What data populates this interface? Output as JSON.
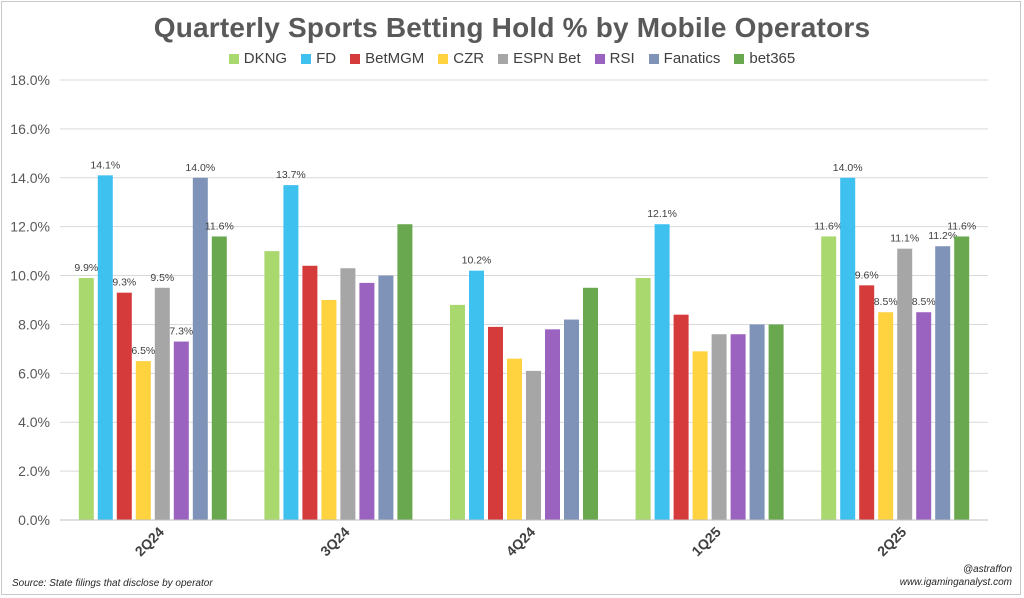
{
  "chart_data": {
    "type": "bar",
    "title": "Quarterly Sports Betting Hold % by Mobile Operators",
    "categories": [
      "2Q24",
      "3Q24",
      "4Q24",
      "1Q25",
      "2Q25"
    ],
    "ylim": [
      0,
      18
    ],
    "yticks": [
      "0.0%",
      "2.0%",
      "4.0%",
      "6.0%",
      "8.0%",
      "10.0%",
      "12.0%",
      "14.0%",
      "16.0%",
      "18.0%"
    ],
    "grid": true,
    "legend_position": "top",
    "series": [
      {
        "name": "DKNG",
        "color": "#a9d86e",
        "values": [
          9.9,
          11.0,
          8.8,
          9.9,
          11.6
        ],
        "labels": [
          "9.9%",
          null,
          null,
          null,
          "11.6%"
        ]
      },
      {
        "name": "FD",
        "color": "#3fc1f0",
        "values": [
          14.1,
          13.7,
          10.2,
          12.1,
          14.0
        ],
        "labels": [
          "14.1%",
          "13.7%",
          "10.2%",
          "12.1%",
          "14.0%"
        ]
      },
      {
        "name": "BetMGM",
        "color": "#d63b3b",
        "values": [
          9.3,
          10.4,
          7.9,
          8.4,
          9.6
        ],
        "labels": [
          "9.3%",
          null,
          null,
          null,
          "9.6%"
        ]
      },
      {
        "name": "CZR",
        "color": "#ffd23f",
        "values": [
          6.5,
          9.0,
          6.6,
          6.9,
          8.5
        ],
        "labels": [
          "6.5%",
          null,
          null,
          null,
          "8.5%"
        ]
      },
      {
        "name": "ESPN Bet",
        "color": "#a6a6a6",
        "values": [
          9.5,
          10.3,
          6.1,
          7.6,
          11.1
        ],
        "labels": [
          "9.5%",
          null,
          null,
          null,
          "11.1%"
        ]
      },
      {
        "name": "RSI",
        "color": "#9b63c0",
        "values": [
          7.3,
          9.7,
          7.8,
          7.6,
          8.5
        ],
        "labels": [
          "7.3%",
          null,
          null,
          null,
          "8.5%"
        ]
      },
      {
        "name": "Fanatics",
        "color": "#7f93b8",
        "values": [
          14.0,
          10.0,
          8.2,
          8.0,
          11.2
        ],
        "labels": [
          "14.0%",
          null,
          null,
          null,
          "11.2%"
        ]
      },
      {
        "name": "bet365",
        "color": "#6aa84f",
        "values": [
          11.6,
          12.1,
          9.5,
          8.0,
          11.6
        ],
        "labels": [
          "11.6%",
          null,
          null,
          null,
          "11.6%"
        ]
      }
    ]
  },
  "footer": {
    "source": "Source: State filings that disclose by operator",
    "handle": "@astraffon",
    "website": "www.igaminganalyst.com"
  }
}
